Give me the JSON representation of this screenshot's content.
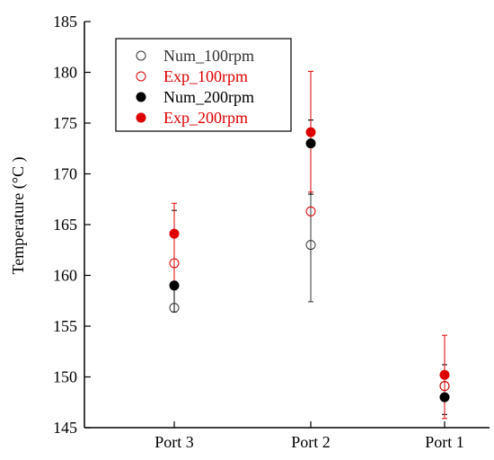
{
  "chart_data": {
    "type": "scatter",
    "categories": [
      "Port 3",
      "Port 2",
      "Port 1"
    ],
    "ylabel": "Temperature (°C )",
    "ylim": [
      145,
      185
    ],
    "yticks": [
      145,
      150,
      155,
      160,
      165,
      170,
      175,
      180,
      185
    ],
    "grid": false,
    "legend_position": "top-left",
    "series": [
      {
        "name": "Num_100rpm",
        "color": "#333333",
        "marker": "open-circle",
        "values": [
          156.8,
          163.0,
          149.1
        ],
        "err_low": [
          null,
          157.4,
          null
        ],
        "err_high": [
          null,
          175.3,
          null
        ]
      },
      {
        "name": "Exp_100rpm",
        "color": "#dd0000",
        "marker": "open-circle",
        "values": [
          161.2,
          166.3,
          149.1
        ],
        "err_low": [
          null,
          null,
          null
        ],
        "err_high": [
          null,
          null,
          null
        ]
      },
      {
        "name": "Num_200rpm",
        "color": "#000000",
        "marker": "filled-circle",
        "values": [
          159.0,
          173.0,
          148.0
        ],
        "err_low": [
          156.4,
          168.0,
          146.3
        ],
        "err_high": [
          166.4,
          175.3,
          151.2
        ]
      },
      {
        "name": "Exp_200rpm",
        "color": "#dd0000",
        "marker": "filled-circle",
        "values": [
          164.1,
          174.1,
          150.2
        ],
        "err_low": [
          158.8,
          168.2,
          145.9
        ],
        "err_high": [
          167.1,
          180.1,
          154.1
        ]
      }
    ]
  }
}
